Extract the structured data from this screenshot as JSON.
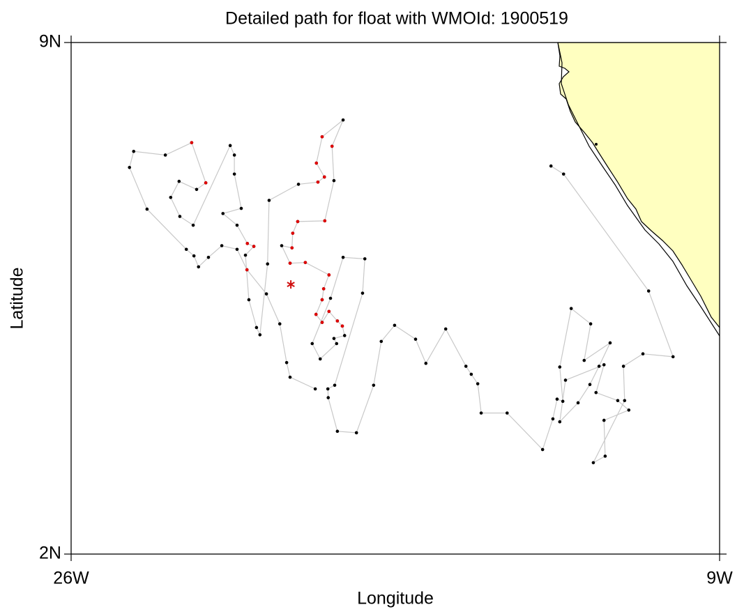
{
  "chart_data": {
    "type": "line",
    "title": "Detailed path for float with WMOId: 1900519",
    "x_label": "Longitude",
    "y_label": "Latitude",
    "xlim": [
      -26,
      -9
    ],
    "ylim": [
      2,
      9
    ],
    "xticks": [
      {
        "value": -26,
        "label": "26W"
      },
      {
        "value": -9,
        "label": "9W"
      }
    ],
    "yticks": [
      {
        "value": 2,
        "label": "2N"
      },
      {
        "value": 9,
        "label": "9N"
      }
    ],
    "grid": false,
    "series": [
      {
        "color": "#000000",
        "line_color": "#c8c8c8",
        "x": [
          -19.6,
          -20.26,
          -20.35,
          -20.53,
          -20.88,
          -21.39,
          -21.65,
          -22.05,
          -22.4,
          -22.66,
          -22.78,
          -22.98,
          -24.01,
          -24.47,
          -24.36,
          -23.53,
          -22.84,
          -22.47,
          -22.71,
          -23.17,
          -23.39,
          -23.15,
          -22.8,
          -21.83,
          -21.72,
          -21.72,
          -21.54,
          -22.02,
          -21.65,
          -21.38,
          -21.21,
          -21.43,
          -21.34,
          -21.14,
          -21.05,
          -20.85,
          -20.81,
          -20.04,
          -19.53,
          -19.36,
          -19.57,
          -19.42,
          -18.87,
          -19.16,
          -19.11,
          -19.35,
          -20.06,
          -20.19,
          -20.21,
          -20.48,
          -20.26,
          -19.86,
          -19.24,
          -19.38,
          -19.42,
          -19.58,
          -19.42,
          -19.24,
          -19.02,
          -18.89,
          -18.83,
          -19.11,
          -19.04,
          -19.47,
          -19.68,
          -19.2,
          -18.87,
          -18.3,
          -18.36,
          -19.09,
          -19.27,
          -19.26,
          -19.02,
          -18.52,
          -18.07,
          -17.87,
          -17.52,
          -16.97,
          -16.7,
          -16.18,
          -15.65,
          -15.51,
          -15.34,
          -15.25,
          -14.57,
          -13.64,
          -13.37,
          -13.26,
          -13.11,
          -13.19,
          -12.89,
          -12.38,
          -12.55,
          -11.87,
          -12.16,
          -12.4,
          -12.71,
          -13.19,
          -13.04,
          -12.03,
          -12.24,
          -11.67,
          -11.38,
          -12.03,
          -12.0,
          -12.31,
          -11.49,
          -11.52,
          -11.01,
          -10.22,
          -10.86,
          -13.09,
          -13.42
        ],
        "values": [
          4.26,
          4.42,
          4.62,
          5.15,
          5.56,
          5.89,
          6.17,
          6.22,
          6.06,
          5.93,
          6.08,
          6.17,
          6.72,
          7.29,
          7.51,
          7.46,
          7.63,
          7.08,
          6.99,
          7.1,
          6.88,
          6.62,
          6.5,
          7.59,
          7.46,
          7.2,
          6.73,
          6.66,
          6.5,
          6.25,
          6.21,
          6.09,
          5.48,
          5.1,
          5.0,
          5.97,
          6.84,
          7.06,
          7.09,
          7.16,
          7.35,
          7.71,
          7.94,
          7.58,
          7.11,
          6.56,
          6.55,
          6.39,
          6.19,
          6.22,
          5.98,
          5.99,
          5.82,
          5.63,
          5.48,
          5.28,
          5.17,
          5.32,
          5.19,
          5.12,
          4.99,
          4.95,
          4.88,
          4.67,
          4.88,
          5.5,
          6.06,
          6.04,
          5.57,
          4.31,
          4.26,
          4.14,
          3.68,
          3.66,
          4.31,
          4.91,
          5.13,
          4.94,
          4.61,
          5.08,
          4.57,
          4.46,
          4.33,
          3.93,
          3.93,
          3.43,
          3.85,
          4.12,
          4.09,
          4.56,
          5.36,
          5.15,
          4.65,
          4.89,
          4.57,
          4.32,
          4.07,
          3.81,
          4.38,
          4.59,
          4.21,
          4.1,
          3.97,
          3.83,
          3.34,
          3.25,
          4.1,
          4.57,
          4.74,
          4.7,
          5.6,
          7.2,
          7.31
        ]
      },
      {
        "color": "#e00000",
        "x": [
          -20.26,
          -19.86,
          -19.24,
          -19.38,
          -19.42,
          -19.58,
          -19.42,
          -19.24,
          -19.02,
          -18.89,
          -21.39,
          -22.84,
          -22.47,
          -21.38,
          -21.21,
          -19.53,
          -19.36,
          -19.57,
          -19.42,
          -19.16,
          -19.35,
          -20.06,
          -20.19,
          -20.21
        ],
        "values": [
          5.98,
          5.99,
          5.82,
          5.63,
          5.48,
          5.28,
          5.17,
          5.32,
          5.19,
          5.12,
          5.89,
          7.63,
          7.08,
          6.25,
          6.21,
          7.09,
          7.16,
          7.35,
          7.71,
          7.58,
          6.56,
          6.55,
          6.39,
          6.19
        ]
      },
      {
        "color": "#d01010",
        "marker": "asterisk",
        "x": [
          -20.24
        ],
        "values": [
          5.69
        ]
      }
    ]
  }
}
